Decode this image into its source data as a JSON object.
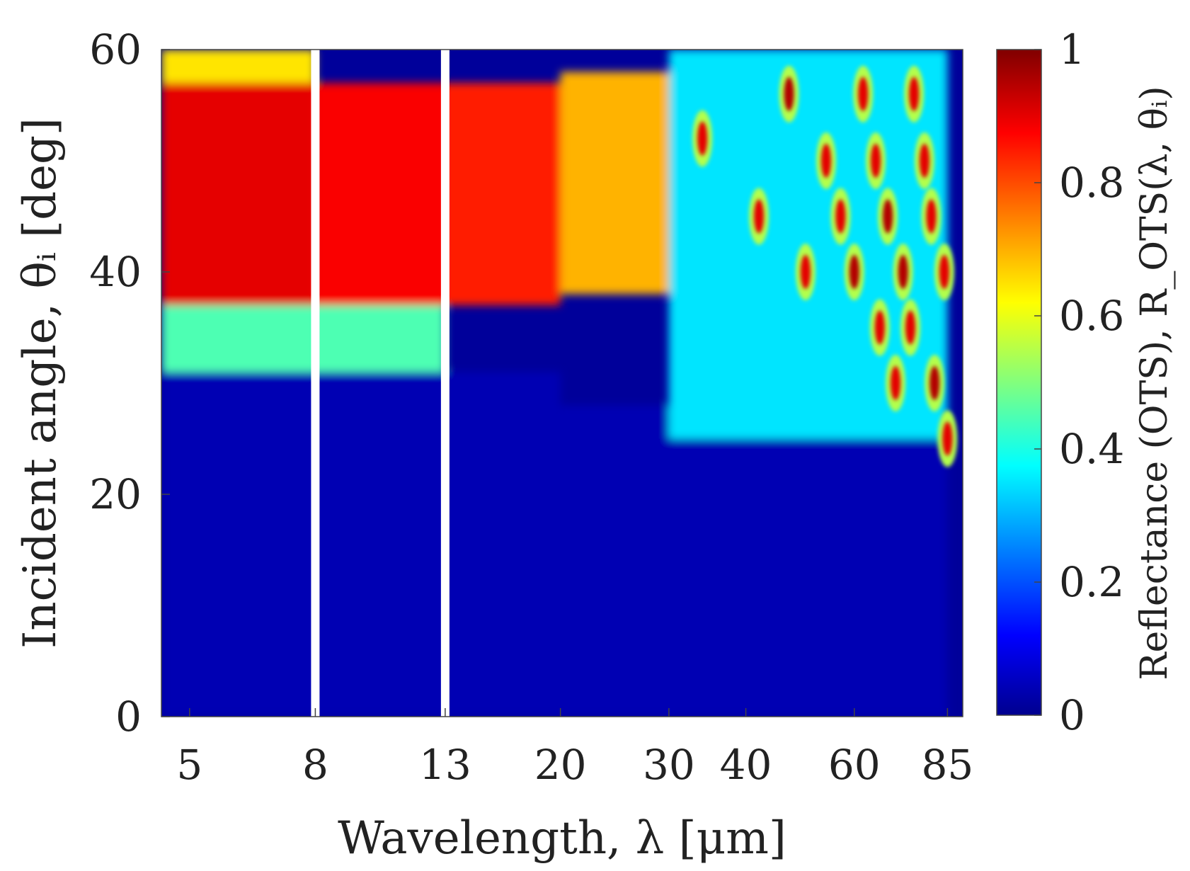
{
  "chart_data": {
    "type": "heatmap",
    "title": "",
    "xlabel": "Wavelength, λ [μm]",
    "ylabel": "Incident angle, θᵢ [deg]",
    "colorbar_label": "Reflectance (OTS), R_OTS(λ, θᵢ)",
    "x_scale": "log",
    "xlim": [
      4.5,
      90
    ],
    "x_ticks": [
      5,
      8,
      13,
      20,
      30,
      40,
      60,
      85
    ],
    "x_tick_labels": [
      "5",
      "8",
      "13",
      "20",
      "30",
      "40",
      "60",
      "85"
    ],
    "ylim": [
      0,
      60
    ],
    "y_ticks": [
      0,
      20,
      40,
      60
    ],
    "y_tick_labels": [
      "0",
      "20",
      "40",
      "60"
    ],
    "clim": [
      0,
      1
    ],
    "colorbar_ticks": [
      0,
      0.2,
      0.4,
      0.6,
      0.8,
      1
    ],
    "colorbar_tick_labels": [
      "0",
      "0.2",
      "0.4",
      "0.6",
      "0.8",
      "1"
    ],
    "colormap": "jet",
    "gaps_at_wavelength": [
      8,
      13
    ],
    "regions": [
      {
        "wavelength_range": [
          4.5,
          8
        ],
        "angle_range": [
          0,
          31
        ],
        "reflectance": 0.05
      },
      {
        "wavelength_range": [
          4.5,
          8
        ],
        "angle_range": [
          31,
          37
        ],
        "reflectance": 0.45
      },
      {
        "wavelength_range": [
          4.5,
          8
        ],
        "angle_range": [
          37,
          57
        ],
        "reflectance": 0.9
      },
      {
        "wavelength_range": [
          4.5,
          8
        ],
        "angle_range": [
          57,
          60
        ],
        "reflectance": 0.65
      },
      {
        "wavelength_range": [
          8,
          13
        ],
        "angle_range": [
          0,
          31
        ],
        "reflectance": 0.05
      },
      {
        "wavelength_range": [
          8,
          13
        ],
        "angle_range": [
          31,
          37
        ],
        "reflectance": 0.45
      },
      {
        "wavelength_range": [
          8,
          13
        ],
        "angle_range": [
          37,
          57
        ],
        "reflectance": 0.88
      },
      {
        "wavelength_range": [
          13,
          20
        ],
        "angle_range": [
          0,
          31
        ],
        "reflectance": 0.05
      },
      {
        "wavelength_range": [
          13,
          20
        ],
        "angle_range": [
          37,
          57
        ],
        "reflectance": 0.85
      },
      {
        "wavelength_range": [
          20,
          30
        ],
        "angle_range": [
          0,
          28
        ],
        "reflectance": 0.05
      },
      {
        "wavelength_range": [
          20,
          30
        ],
        "angle_range": [
          38,
          58
        ],
        "reflectance": 0.7
      },
      {
        "wavelength_range": [
          30,
          85
        ],
        "angle_range": [
          0,
          25
        ],
        "reflectance": 0.05
      },
      {
        "wavelength_range": [
          30,
          85
        ],
        "angle_range": [
          25,
          60
        ],
        "reflectance": 0.35
      }
    ],
    "resonance_spots": [
      {
        "wavelength": 34,
        "angle": 52,
        "reflectance": 0.9
      },
      {
        "wavelength": 42,
        "angle": 45,
        "reflectance": 0.9
      },
      {
        "wavelength": 47,
        "angle": 56,
        "reflectance": 0.95
      },
      {
        "wavelength": 50,
        "angle": 40,
        "reflectance": 0.9
      },
      {
        "wavelength": 54,
        "angle": 50,
        "reflectance": 0.9
      },
      {
        "wavelength": 57,
        "angle": 45,
        "reflectance": 0.9
      },
      {
        "wavelength": 60,
        "angle": 40,
        "reflectance": 0.95
      },
      {
        "wavelength": 62,
        "angle": 56,
        "reflectance": 0.9
      },
      {
        "wavelength": 65,
        "angle": 50,
        "reflectance": 0.9
      },
      {
        "wavelength": 66,
        "angle": 35,
        "reflectance": 0.9
      },
      {
        "wavelength": 68,
        "angle": 45,
        "reflectance": 0.95
      },
      {
        "wavelength": 70,
        "angle": 30,
        "reflectance": 0.9
      },
      {
        "wavelength": 72,
        "angle": 40,
        "reflectance": 0.95
      },
      {
        "wavelength": 74,
        "angle": 35,
        "reflectance": 0.9
      },
      {
        "wavelength": 75,
        "angle": 56,
        "reflectance": 0.9
      },
      {
        "wavelength": 78,
        "angle": 50,
        "reflectance": 0.9
      },
      {
        "wavelength": 80,
        "angle": 45,
        "reflectance": 0.9
      },
      {
        "wavelength": 81,
        "angle": 30,
        "reflectance": 0.95
      },
      {
        "wavelength": 84,
        "angle": 40,
        "reflectance": 0.9
      },
      {
        "wavelength": 85,
        "angle": 25,
        "reflectance": 0.9
      }
    ]
  }
}
